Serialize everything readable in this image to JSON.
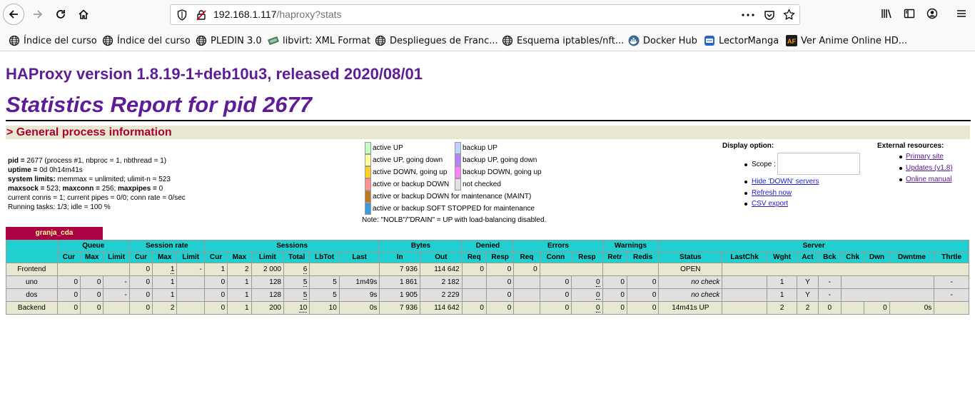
{
  "browser": {
    "url_host": "192.168.1.117",
    "url_path": "/haproxy?stats",
    "bookmarks": [
      {
        "label": "Índice del curso",
        "icon": "globe-icon"
      },
      {
        "label": "Índice del curso",
        "icon": "globe-icon"
      },
      {
        "label": "PLEDIN 3.0",
        "icon": "globe-icon"
      },
      {
        "label": "libvirt: XML Format",
        "icon": "libvirt-icon"
      },
      {
        "label": "Despliegues de Franc...",
        "icon": "globe-icon"
      },
      {
        "label": "Esquema iptables/nft...",
        "icon": "globe-icon"
      },
      {
        "label": "Docker Hub",
        "icon": "docker-icon"
      },
      {
        "label": "LectorManga",
        "icon": "lectormanga-icon"
      },
      {
        "label": "Ver Anime Online HD...",
        "icon": "animeflv-icon"
      }
    ]
  },
  "page": {
    "version_title": "HAProxy version 1.8.19-1+deb10u3, released 2020/08/01",
    "report_title": "Statistics Report for pid 2677",
    "section_title": "> General process information",
    "info": {
      "pid_label": "pid = ",
      "pid_value": "2677 (process #1, nbproc = 1, nbthread = 1)",
      "uptime_label": "uptime = ",
      "uptime_value": "0d 0h14m41s",
      "limits_label": "system limits:",
      "limits_value": " memmax = unlimited; ulimit-n = 523",
      "maxsock_label": "maxsock = ",
      "maxsock_value": "523; ",
      "maxconn_label": "maxconn = ",
      "maxconn_value": "256; ",
      "maxpipes_label": "maxpipes = ",
      "maxpipes_value": "0",
      "conns_line": "current conns = 1; current pipes = 0/0; conn rate = 0/sec",
      "tasks_line": "Running tasks: 1/3; idle = 100 %"
    },
    "legend": [
      {
        "label": "active UP",
        "color": "#c0ffc0"
      },
      {
        "label": "active UP, going down",
        "color": "#ffffa0"
      },
      {
        "label": "active DOWN, going up",
        "color": "#ffd020"
      },
      {
        "label": "active or backup DOWN",
        "color": "#ff9090"
      },
      {
        "label": "active or backup DOWN for maintenance (MAINT)",
        "color": "#c07820"
      },
      {
        "label": "active or backup SOFT STOPPED for maintenance",
        "color": "#3a9bdc"
      },
      {
        "label": "backup UP",
        "color": "#c0d0ff"
      },
      {
        "label": "backup UP, going down",
        "color": "#b880ff"
      },
      {
        "label": "backup DOWN, going up",
        "color": "#ff80ff"
      },
      {
        "label": "not checked",
        "color": "#e0e0e0"
      }
    ],
    "legend_note": "Note: \"NOLB\"/\"DRAIN\" = UP with load-balancing disabled.",
    "display": {
      "title": "Display option:",
      "scope_label": "Scope :",
      "hide_down": "Hide 'DOWN' servers",
      "refresh": "Refresh now",
      "csv": "CSV export"
    },
    "external": {
      "title": "External resources:",
      "primary": "Primary site",
      "updates": "Updates (v1.8)",
      "manual": "Online manual"
    }
  },
  "proxy": {
    "name": "granja_cda",
    "groups": [
      "Queue",
      "Session rate",
      "Sessions",
      "Bytes",
      "Denied",
      "Errors",
      "Warnings",
      "Server"
    ],
    "columns": [
      "Cur",
      "Max",
      "Limit",
      "Cur",
      "Max",
      "Limit",
      "Cur",
      "Max",
      "Limit",
      "Total",
      "LbTot",
      "Last",
      "In",
      "Out",
      "Req",
      "Resp",
      "Req",
      "Conn",
      "Resp",
      "Retr",
      "Redis",
      "Status",
      "LastChk",
      "Wght",
      "Act",
      "Bck",
      "Chk",
      "Dwn",
      "Dwntme",
      "Thrtle"
    ],
    "rows": {
      "frontend": {
        "name": "Frontend",
        "sr_cur": "0",
        "sr_max": "1",
        "sr_lim": "-",
        "s_cur": "1",
        "s_max": "2",
        "s_lim": "2 000",
        "s_tot": "6",
        "b_in": "7 936",
        "b_out": "114 642",
        "d_req": "0",
        "d_resp": "0",
        "e_req": "0",
        "status": "OPEN"
      },
      "uno": {
        "name": "uno",
        "q_cur": "0",
        "q_max": "0",
        "q_lim": "-",
        "sr_cur": "0",
        "sr_max": "1",
        "s_cur": "0",
        "s_max": "1",
        "s_lim": "128",
        "s_tot": "5",
        "lbtot": "5",
        "last": "1m49s",
        "b_in": "1 861",
        "b_out": "2 182",
        "d_resp": "0",
        "e_conn": "0",
        "e_resp": "0",
        "w_retr": "0",
        "w_redis": "0",
        "status": "no check",
        "wght": "1",
        "act": "Y",
        "bck": "-",
        "thrtle": "-"
      },
      "dos": {
        "name": "dos",
        "q_cur": "0",
        "q_max": "0",
        "q_lim": "-",
        "sr_cur": "0",
        "sr_max": "1",
        "s_cur": "0",
        "s_max": "1",
        "s_lim": "128",
        "s_tot": "5",
        "lbtot": "5",
        "last": "9s",
        "b_in": "1 905",
        "b_out": "2 229",
        "d_resp": "0",
        "e_conn": "0",
        "e_resp": "0",
        "w_retr": "0",
        "w_redis": "0",
        "status": "no check",
        "wght": "1",
        "act": "Y",
        "bck": "-",
        "thrtle": "-"
      },
      "backend": {
        "name": "Backend",
        "q_cur": "0",
        "q_max": "0",
        "sr_cur": "0",
        "sr_max": "2",
        "s_cur": "0",
        "s_max": "1",
        "s_lim": "200",
        "s_tot": "10",
        "lbtot": "10",
        "last": "0s",
        "b_in": "7 936",
        "b_out": "114 642",
        "d_req": "0",
        "d_resp": "0",
        "e_conn": "0",
        "e_resp": "0",
        "w_retr": "0",
        "w_redis": "0",
        "status": "14m41s UP",
        "wght": "2",
        "act": "2",
        "bck": "0",
        "dwn": "0",
        "dwntme": "0s"
      }
    }
  }
}
